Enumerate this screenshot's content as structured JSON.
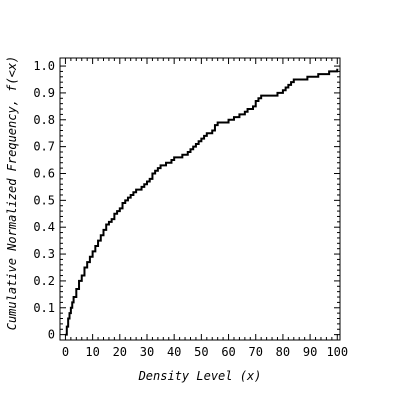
{
  "chart_data": {
    "type": "line",
    "title": "",
    "xlabel": "Density Level (x)",
    "ylabel": "Cumulative Normalized Frequency, f(<x)",
    "xlim": [
      -2,
      101
    ],
    "ylim": [
      -0.02,
      1.03
    ],
    "x_ticks": [
      0,
      10,
      20,
      30,
      40,
      50,
      60,
      70,
      80,
      90,
      100
    ],
    "y_ticks": [
      0,
      0.1,
      0.2,
      0.3,
      0.4,
      0.5,
      0.6,
      0.7,
      0.8,
      0.9,
      1.0
    ],
    "y_tick_labels": [
      "0",
      "0.1",
      "0.2",
      "0.3",
      "0.4",
      "0.5",
      "0.6",
      "0.7",
      "0.8",
      "0.9",
      "1.0"
    ],
    "grid": false,
    "line_color": "#000000",
    "step": true,
    "series": [
      {
        "x": [
          0,
          0.5,
          1,
          1.5,
          2,
          2.5,
          3,
          4,
          5,
          6,
          7,
          8,
          9,
          10,
          11,
          12,
          13,
          14,
          15,
          16,
          17,
          18,
          19,
          20,
          21,
          22,
          23,
          24,
          25,
          26,
          27,
          28,
          29,
          30,
          31,
          32,
          33,
          34,
          35,
          36,
          37,
          38,
          39,
          40,
          41,
          42,
          43,
          44,
          45,
          46,
          47,
          48,
          49,
          50,
          51,
          52,
          53,
          54,
          55,
          56,
          57,
          58,
          59,
          60,
          61,
          62,
          63,
          64,
          65,
          66,
          67,
          68,
          69,
          70,
          71,
          72,
          73,
          74,
          75,
          76,
          77,
          78,
          79,
          80,
          81,
          82,
          83,
          84,
          85,
          86,
          87,
          88,
          89,
          90,
          91,
          92,
          93,
          94,
          95,
          96,
          97,
          98,
          99,
          100
        ],
        "y": [
          0.0,
          0.03,
          0.06,
          0.08,
          0.1,
          0.12,
          0.14,
          0.17,
          0.2,
          0.22,
          0.25,
          0.27,
          0.29,
          0.31,
          0.33,
          0.35,
          0.37,
          0.39,
          0.41,
          0.42,
          0.43,
          0.45,
          0.46,
          0.47,
          0.49,
          0.5,
          0.51,
          0.52,
          0.53,
          0.54,
          0.54,
          0.55,
          0.56,
          0.57,
          0.58,
          0.6,
          0.61,
          0.62,
          0.63,
          0.63,
          0.64,
          0.64,
          0.65,
          0.66,
          0.66,
          0.66,
          0.67,
          0.67,
          0.68,
          0.69,
          0.7,
          0.71,
          0.72,
          0.73,
          0.74,
          0.75,
          0.75,
          0.76,
          0.78,
          0.79,
          0.79,
          0.79,
          0.79,
          0.8,
          0.8,
          0.81,
          0.81,
          0.82,
          0.82,
          0.83,
          0.84,
          0.84,
          0.85,
          0.87,
          0.88,
          0.89,
          0.89,
          0.89,
          0.89,
          0.89,
          0.89,
          0.9,
          0.9,
          0.91,
          0.92,
          0.93,
          0.94,
          0.95,
          0.95,
          0.95,
          0.95,
          0.95,
          0.96,
          0.96,
          0.96,
          0.96,
          0.97,
          0.97,
          0.97,
          0.97,
          0.98,
          0.98,
          0.98,
          0.99
        ]
      }
    ]
  }
}
